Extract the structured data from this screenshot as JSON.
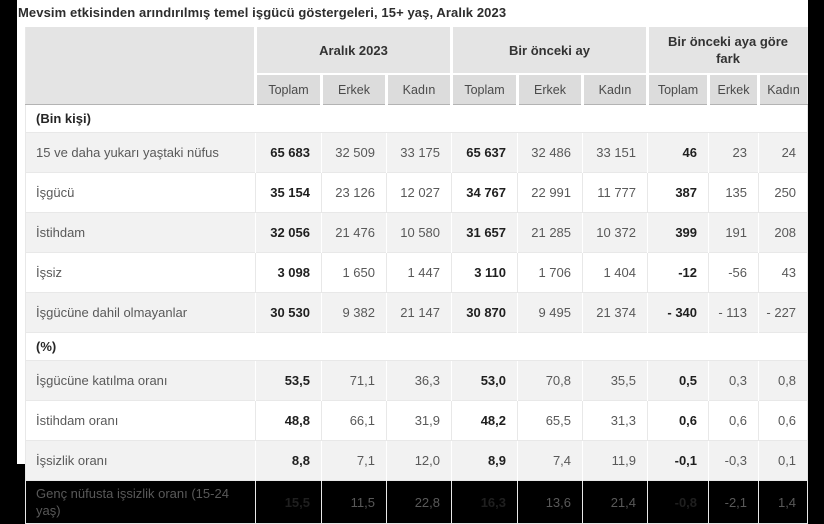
{
  "chart_data": {
    "type": "table",
    "title": "Mevsim etkisinden arındırılmış temel işgücü göstergeleri, 15+ yaş, Aralık 2023",
    "column_groups": [
      {
        "label": "Aralık 2023",
        "span": 3
      },
      {
        "label": "Bir önceki ay",
        "span": 3
      },
      {
        "label": "Bir önceki aya göre fark",
        "span": 3
      }
    ],
    "columns": [
      "Toplam",
      "Erkek",
      "Kadın",
      "Toplam",
      "Erkek",
      "Kadın",
      "Toplam",
      "Erkek",
      "Kadın"
    ],
    "emphasized_columns": [
      0,
      3,
      6
    ],
    "sections": [
      {
        "header": "(Bin kişi)",
        "rows": [
          {
            "label": "15 ve daha yukarı yaştaki nüfus",
            "values": [
              "65 683",
              "32 509",
              "33 175",
              "65 637",
              "32 486",
              "33 151",
              "46",
              "23",
              "24"
            ]
          },
          {
            "label": "İşgücü",
            "values": [
              "35 154",
              "23 126",
              "12 027",
              "34 767",
              "22 991",
              "11 777",
              "387",
              "135",
              "250"
            ]
          },
          {
            "label": "İstihdam",
            "values": [
              "32 056",
              "21 476",
              "10 580",
              "31 657",
              "21 285",
              "10 372",
              "399",
              "191",
              "208"
            ]
          },
          {
            "label": "İşsiz",
            "values": [
              "3 098",
              "1 650",
              "1 447",
              "3 110",
              "1 706",
              "1 404",
              "-12",
              "-56",
              "43"
            ]
          },
          {
            "label": "İşgücüne dahil olmayanlar",
            "values": [
              "30 530",
              "9 382",
              "21 147",
              "30 870",
              "9 495",
              "21 374",
              "- 340",
              "- 113",
              "- 227"
            ]
          }
        ]
      },
      {
        "header": "(%)",
        "rows": [
          {
            "label": "İşgücüne katılma oranı",
            "values": [
              "53,5",
              "71,1",
              "36,3",
              "53,0",
              "70,8",
              "35,5",
              "0,5",
              "0,3",
              "0,8"
            ]
          },
          {
            "label": "İstihdam oranı",
            "values": [
              "48,8",
              "66,1",
              "31,9",
              "48,2",
              "65,5",
              "31,3",
              "0,6",
              "0,6",
              "0,6"
            ]
          },
          {
            "label": "İşsizlik oranı",
            "values": [
              "8,8",
              "7,1",
              "12,0",
              "8,9",
              "7,4",
              "11,9",
              "-0,1",
              "-0,3",
              "0,1"
            ]
          },
          {
            "label": "Genç nüfusta işsizlik oranı (15-24 yaş)",
            "values": [
              "15,5",
              "11,5",
              "22,8",
              "16,3",
              "13,6",
              "21,4",
              "-0,8",
              "-2,1",
              "1,4"
            ]
          }
        ]
      }
    ]
  },
  "colors": {
    "page_background": "#000000",
    "panel_background": "#ffffff",
    "header_group_bg": "#e4e4e4",
    "header_sub_bg": "#dcdcdc",
    "header_text": "#333333",
    "subheader_text": "#4a4a4a",
    "stripe_bg": "#f2f2f2",
    "row_border": "#e8e8e8",
    "header_border": "#b3b3b3",
    "title_text": "#2d2d2d",
    "label_text": "#595959",
    "section_text": "#262626",
    "value_bold_text": "#1f1f1f"
  }
}
